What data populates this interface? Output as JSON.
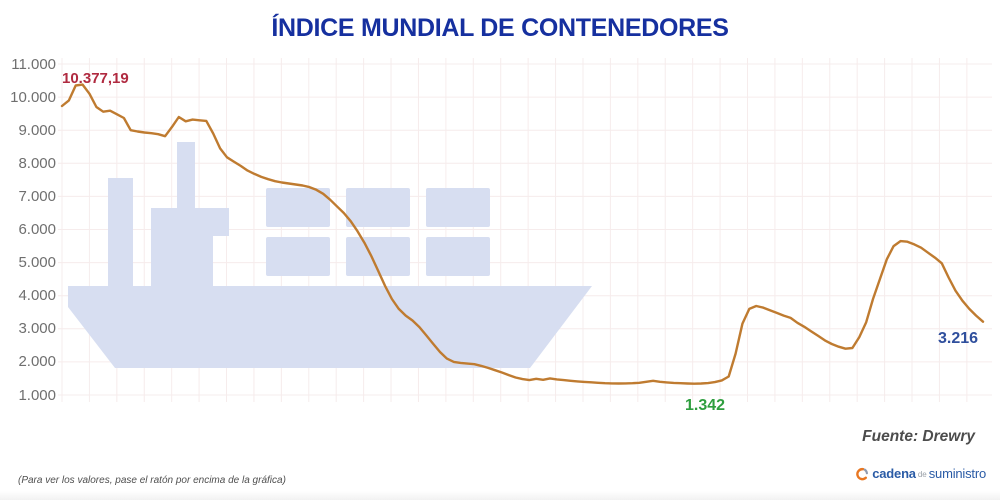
{
  "title": "ÍNDICE MUNDIAL DE CONTENEDORES",
  "source_note": "Fuente: Drewry",
  "footer_hint": "(Para ver los valores, pase el ratón por encima de la gráfica)",
  "logo": {
    "word1": "cadena",
    "word2": "de",
    "word3": "suministro",
    "icon": "swoosh-circle-icon"
  },
  "annotations": {
    "peak": {
      "text": "10.377,19",
      "value": 10377.19,
      "color": "#b02a40"
    },
    "min": {
      "text": "1.342",
      "value": 1342,
      "color": "#2e9e3e"
    },
    "last": {
      "text": "3.216",
      "value": 3216,
      "color": "#2f4f9d"
    }
  },
  "y_axis": {
    "tick_labels": [
      "11.000",
      "10.000",
      "9.000",
      "8.000",
      "7.000",
      "6.000",
      "5.000",
      "4.000",
      "3.000",
      "2.000",
      "1.000"
    ]
  },
  "colors": {
    "title": "#16309f",
    "line": "#bf7b30",
    "watermark": "#d7def1",
    "grid": "#f6ecec",
    "axis_text": "#6f6f6f",
    "peak_label": "#b02a40",
    "min_label": "#2e9e3e",
    "last_label": "#2f4f9d",
    "source_text": "#4c4c4c",
    "logo_blue": "#2a5ba6",
    "logo_orange": "#e87722"
  },
  "chart_data": {
    "type": "line",
    "title": "ÍNDICE MUNDIAL DE CONTENEDORES",
    "ylim": [
      1000,
      11000
    ],
    "y_ticks": [
      1000,
      2000,
      3000,
      4000,
      5000,
      6000,
      7000,
      8000,
      9000,
      10000,
      11000
    ],
    "y_tick_labels": [
      "1.000",
      "2.000",
      "3.000",
      "4.000",
      "5.000",
      "6.000",
      "7.000",
      "8.000",
      "9.000",
      "10.000",
      "11.000"
    ],
    "x_tick_labels": [],
    "grid": true,
    "legend": false,
    "source": "Drewry",
    "annotated_points": {
      "max": 10377.19,
      "min": 1342,
      "last": 3216
    },
    "series": [
      {
        "name": "Índice mundial de contenedores",
        "values": [
          9730,
          9900,
          10350,
          10377,
          10100,
          9700,
          9560,
          9590,
          9480,
          9370,
          9000,
          8960,
          8930,
          8910,
          8880,
          8820,
          9100,
          9400,
          9270,
          9320,
          9300,
          9280,
          8900,
          8450,
          8180,
          8050,
          7920,
          7780,
          7680,
          7590,
          7520,
          7460,
          7420,
          7390,
          7360,
          7330,
          7280,
          7200,
          7080,
          6900,
          6700,
          6500,
          6250,
          5950,
          5600,
          5200,
          4750,
          4300,
          3900,
          3600,
          3400,
          3250,
          3050,
          2800,
          2550,
          2300,
          2100,
          2000,
          1970,
          1950,
          1930,
          1880,
          1820,
          1750,
          1680,
          1600,
          1530,
          1480,
          1450,
          1490,
          1460,
          1500,
          1470,
          1450,
          1430,
          1410,
          1395,
          1385,
          1370,
          1355,
          1350,
          1348,
          1350,
          1355,
          1370,
          1400,
          1430,
          1400,
          1380,
          1365,
          1355,
          1348,
          1342,
          1348,
          1360,
          1390,
          1440,
          1560,
          2250,
          3150,
          3600,
          3690,
          3640,
          3560,
          3480,
          3400,
          3330,
          3180,
          3060,
          2920,
          2790,
          2650,
          2540,
          2460,
          2400,
          2420,
          2750,
          3200,
          3900,
          4500,
          5100,
          5500,
          5650,
          5630,
          5550,
          5450,
          5300,
          5150,
          4980,
          4550,
          4150,
          3850,
          3600,
          3400,
          3216
        ]
      }
    ]
  }
}
